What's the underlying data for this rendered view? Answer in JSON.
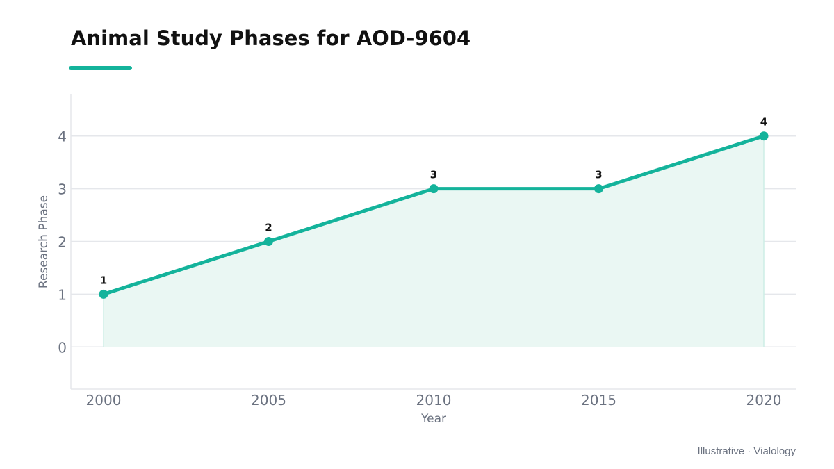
{
  "header": {
    "title": "Animal Study Phases for AOD-9604"
  },
  "footer": {
    "source": "Illustrative · Vialology"
  },
  "colors": {
    "accent": "#14b39b",
    "area_fill": "#eaf7f3",
    "grid": "#e5e7eb",
    "axis_text": "#6b7280",
    "label_text": "#111111"
  },
  "chart_data": {
    "type": "line",
    "title": "Animal Study Phases for AOD-9604",
    "xlabel": "Year",
    "ylabel": "Research Phase",
    "categories": [
      "2000",
      "2005",
      "2010",
      "2015",
      "2020"
    ],
    "series": [
      {
        "values": [
          1,
          2,
          3,
          3,
          4
        ]
      }
    ],
    "data_labels": [
      "1",
      "2",
      "3",
      "3",
      "4"
    ],
    "yticks": [
      0,
      1,
      2,
      3,
      4
    ],
    "ylim": [
      -0.8,
      4.8
    ],
    "grid": true,
    "area_fill": true,
    "legend": "none"
  }
}
